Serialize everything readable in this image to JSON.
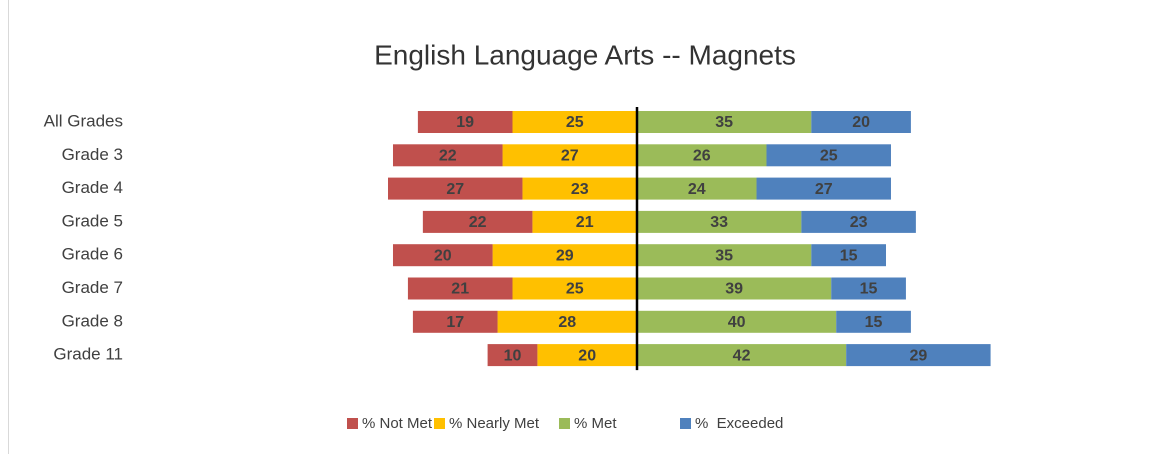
{
  "chart_data": {
    "type": "diverging_bar",
    "title": "English Language Arts -- Magnets",
    "categories": [
      "All Grades",
      "Grade 3",
      "Grade 4",
      "Grade 5",
      "Grade 6",
      "Grade 7",
      "Grade 8",
      "Grade 11"
    ],
    "series": [
      {
        "name": "% Not Met",
        "color": "#c0504d",
        "values": [
          19,
          22,
          27,
          22,
          20,
          21,
          17,
          10
        ]
      },
      {
        "name": "% Nearly Met",
        "color": "#ffc000",
        "values": [
          25,
          27,
          23,
          21,
          29,
          25,
          28,
          20
        ]
      },
      {
        "name": "% Met",
        "color": "#9bbb59",
        "values": [
          35,
          26,
          24,
          33,
          35,
          39,
          40,
          42
        ]
      },
      {
        "name": "%  Exceeded",
        "color": "#4f81bd",
        "values": [
          20,
          25,
          27,
          23,
          15,
          15,
          15,
          29
        ]
      }
    ],
    "legend": "bottom"
  }
}
